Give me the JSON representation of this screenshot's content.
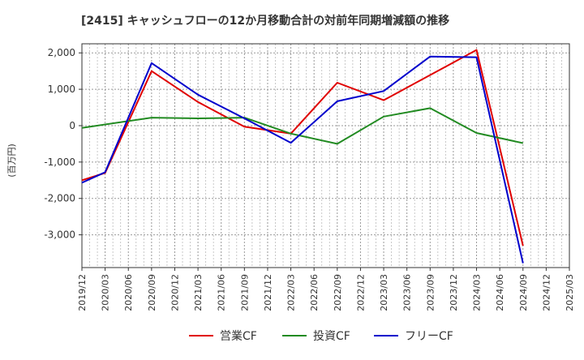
{
  "chart_data": {
    "type": "line",
    "title": "[2415]  キャッシュフローの12か月移動合計の対前年同期増減額の推移",
    "ylabel": "(百万円)",
    "xlabel": "",
    "ylim": [
      -3900,
      2250
    ],
    "yticks": [
      2000,
      1000,
      0,
      -1000,
      -2000,
      -3000
    ],
    "ytick_labels": [
      "2,000",
      "1,000",
      "0",
      "-1,000",
      "-2,000",
      "-3,000"
    ],
    "x_ticks": [
      "2019/12",
      "2020/03",
      "2020/06",
      "2020/09",
      "2020/12",
      "2021/03",
      "2021/06",
      "2021/09",
      "2021/12",
      "2022/03",
      "2022/06",
      "2022/09",
      "2022/12",
      "2023/03",
      "2023/06",
      "2023/09",
      "2023/12",
      "2024/03",
      "2024/06",
      "2024/09",
      "2024/12",
      "2025/03"
    ],
    "grid": true,
    "legend_position": "bottom",
    "series": [
      {
        "name": "営業CF",
        "color": "#e00000",
        "values": [
          -1500,
          -1300,
          null,
          1500,
          null,
          650,
          null,
          -30,
          null,
          -220,
          null,
          1180,
          null,
          700,
          null,
          null,
          null,
          2080,
          null,
          -3300,
          null,
          null
        ]
      },
      {
        "name": "投資CF",
        "color": "#228b22",
        "values": [
          -60,
          null,
          null,
          220,
          null,
          200,
          null,
          220,
          null,
          -220,
          null,
          -500,
          null,
          250,
          null,
          480,
          null,
          -200,
          null,
          -480,
          null,
          null
        ]
      },
      {
        "name": "フリーCF",
        "color": "#0000cc",
        "values": [
          -1570,
          -1280,
          null,
          1720,
          null,
          850,
          null,
          200,
          null,
          -470,
          null,
          670,
          null,
          950,
          null,
          1900,
          null,
          1880,
          null,
          -3780,
          null,
          null
        ]
      }
    ]
  }
}
